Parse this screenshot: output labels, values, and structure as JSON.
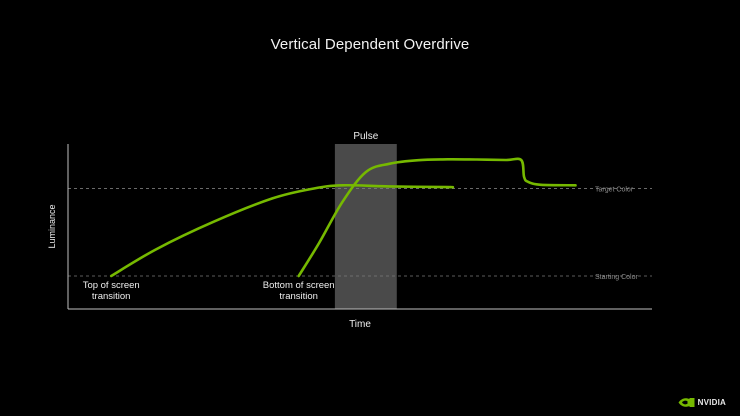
{
  "slide": {
    "title": "Vertical Dependent Overdrive",
    "brand": "NVIDIA"
  },
  "colors": {
    "background": "#000000",
    "curve": "#76b900",
    "axis": "#bfbfbf",
    "pulse_fill": "#4a4a4a",
    "reference_line": "#7a7a7a",
    "reference_text": "#8a8a8a"
  },
  "chart_data": {
    "type": "line",
    "xlabel": "Time",
    "ylabel": "Luminance",
    "xlim": [
      0,
      100
    ],
    "ylim": [
      0,
      100
    ],
    "grid": false,
    "legend": "none",
    "pulse": {
      "label": "Pulse",
      "x_start": 45.7,
      "x_end": 56.3
    },
    "reference_lines": [
      {
        "label": "Target Color",
        "y": 73
      },
      {
        "label": "Starting Color",
        "y": 20
      }
    ],
    "series": [
      {
        "x": [
          7.4,
          15,
          25,
          35,
          42,
          47,
          55,
          65,
          65.5
        ],
        "y": [
          20,
          36,
          53,
          67,
          73,
          75,
          74.3,
          73.9,
          73.9
        ]
      },
      {
        "x": [
          39.5,
          43,
          47,
          51,
          55,
          60,
          65,
          70,
          75,
          77.6,
          78.1,
          78.8,
          81,
          86.9
        ],
        "y": [
          20,
          40,
          65,
          83,
          88,
          90.2,
          90.7,
          90.6,
          90.3,
          90.3,
          80,
          77,
          75.3,
          75
        ]
      }
    ],
    "annotations": [
      {
        "text": "Top of screen transition",
        "x": 7.4,
        "y": 20
      },
      {
        "text": "Bottom of screen transition",
        "x": 39.5,
        "y": 20
      }
    ]
  }
}
